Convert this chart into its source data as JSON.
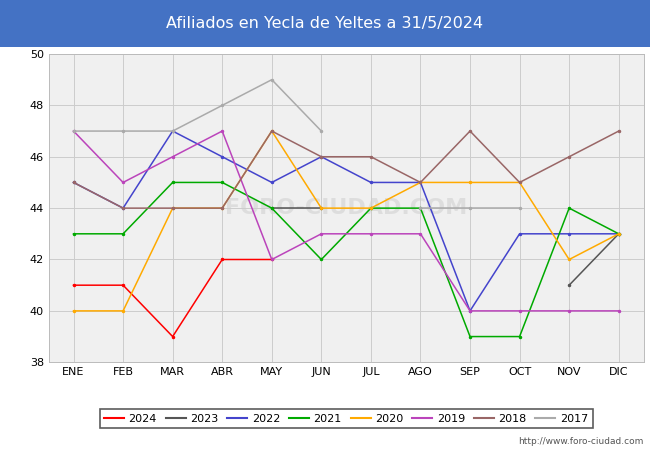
{
  "title": "Afiliados en Yecla de Yeltes a 31/5/2024",
  "title_bg_color": "#4472c4",
  "title_text_color": "white",
  "ylim": [
    38,
    50
  ],
  "yticks": [
    38,
    40,
    42,
    44,
    46,
    48,
    50
  ],
  "months": [
    "ENE",
    "FEB",
    "MAR",
    "ABR",
    "MAY",
    "JUN",
    "JUL",
    "AGO",
    "SEP",
    "OCT",
    "NOV",
    "DIC"
  ],
  "url": "http://www.foro-ciudad.com",
  "series": {
    "2024": {
      "color": "#ff0000",
      "data": [
        41,
        41,
        39,
        42,
        42,
        null,
        null,
        null,
        null,
        null,
        null,
        null
      ]
    },
    "2023": {
      "color": "#555555",
      "data": [
        null,
        null,
        null,
        null,
        44,
        44,
        null,
        null,
        null,
        null,
        41,
        43
      ]
    },
    "2022": {
      "color": "#4444cc",
      "data": [
        45,
        44,
        47,
        46,
        45,
        46,
        45,
        45,
        40,
        43,
        43,
        43
      ]
    },
    "2021": {
      "color": "#00aa00",
      "data": [
        43,
        43,
        45,
        45,
        44,
        42,
        44,
        44,
        39,
        39,
        44,
        43
      ]
    },
    "2020": {
      "color": "#ffaa00",
      "data": [
        40,
        40,
        44,
        44,
        47,
        44,
        44,
        45,
        45,
        45,
        42,
        43
      ]
    },
    "2019": {
      "color": "#bb44bb",
      "data": [
        47,
        45,
        46,
        47,
        42,
        43,
        43,
        43,
        40,
        40,
        40,
        40
      ]
    },
    "2018": {
      "color": "#996666",
      "data": [
        45,
        44,
        44,
        44,
        47,
        46,
        46,
        45,
        47,
        45,
        46,
        47
      ]
    },
    "2017": {
      "color": "#aaaaaa",
      "data": [
        47,
        47,
        47,
        48,
        49,
        47,
        null,
        44,
        44,
        44,
        null,
        null
      ]
    }
  },
  "legend_order": [
    "2024",
    "2023",
    "2022",
    "2021",
    "2020",
    "2019",
    "2018",
    "2017"
  ],
  "plot_bg_color": "#f0f0f0",
  "grid_color": "#cccccc"
}
